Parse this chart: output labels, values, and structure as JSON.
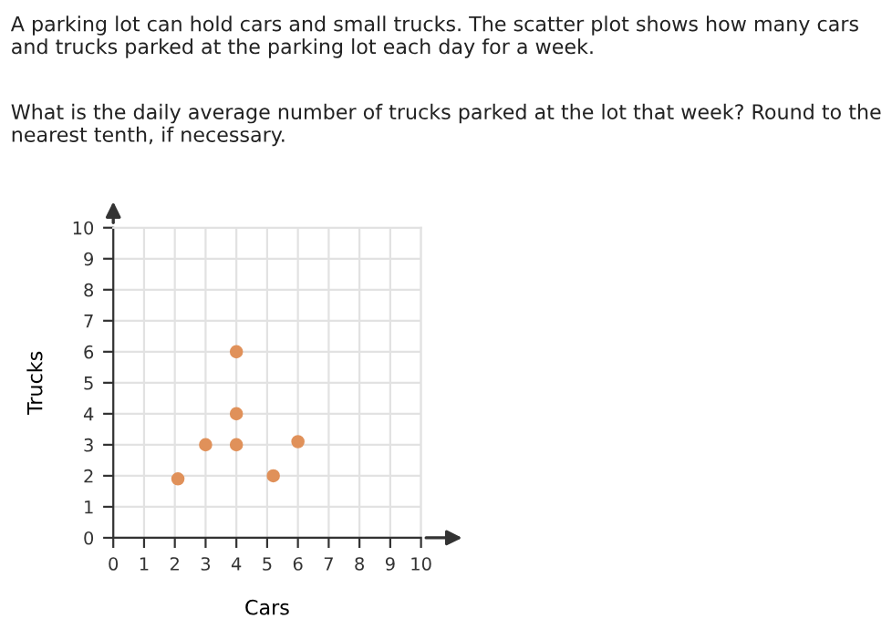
{
  "chart_data": {
    "type": "scatter",
    "title": "A parking lot can hold cars and small trucks. The scatter plot shows how many cars and trucks parked at the parking lot each day for a week.",
    "subtitle": "What is the daily average number of trucks parked at the lot that week? Round to the nearest tenth, if necessary.",
    "xlabel": "Cars",
    "ylabel": "Trucks",
    "x": [
      2.1,
      3,
      4,
      4,
      4,
      5.2,
      6
    ],
    "series": [
      {
        "color": "#e0915a",
        "values": [
          1.9,
          3,
          6,
          4,
          3,
          2,
          3.1
        ]
      }
    ],
    "xlim": [
      0,
      10
    ],
    "ylim": [
      0,
      10
    ],
    "xticks": [
      0,
      1,
      2,
      3,
      4,
      5,
      6,
      7,
      8,
      9,
      10
    ],
    "yticks": [
      0,
      1,
      2,
      3,
      4,
      5,
      6,
      7,
      8,
      9,
      10
    ],
    "grid": true,
    "marker": "circle",
    "legend": false
  }
}
